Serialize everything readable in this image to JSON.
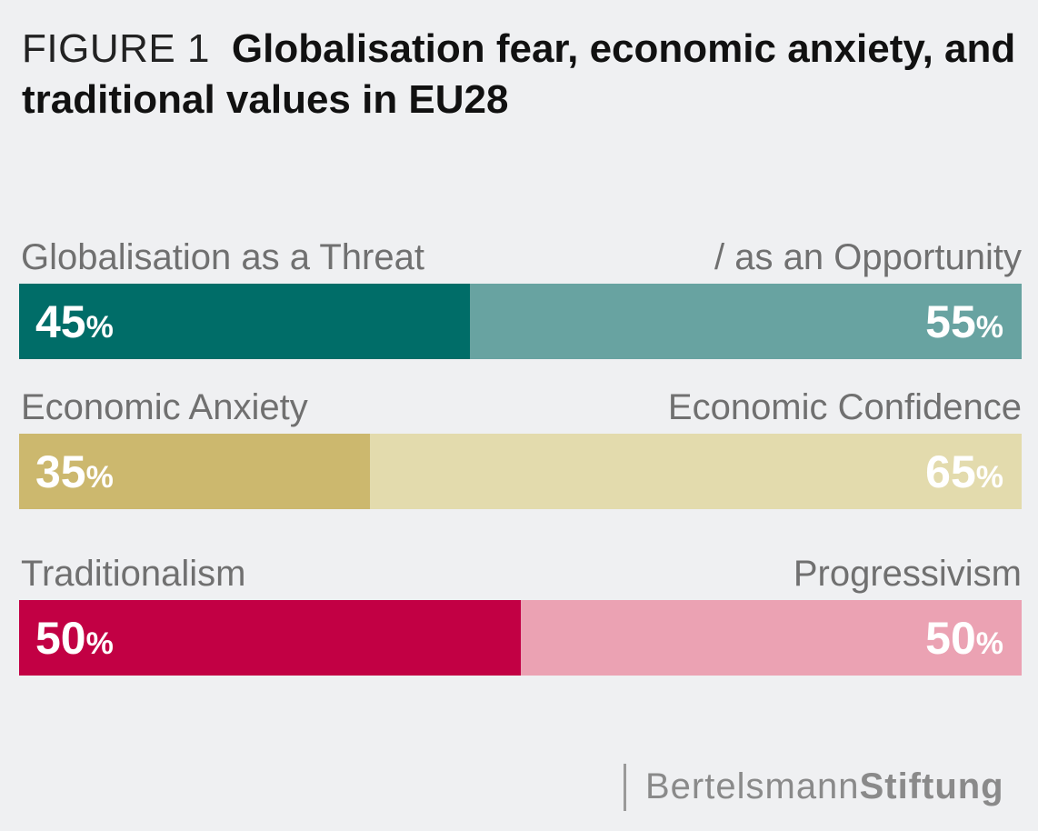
{
  "title": {
    "figure_label": "FIGURE 1",
    "text": "Globalisation fear, economic anxiety, and traditional values in EU28"
  },
  "chart_data": {
    "type": "bar",
    "stacked": true,
    "orientation": "horizontal",
    "rows": [
      {
        "left_label": "Globalisation as a Threat",
        "right_label": "/ as an Opportunity",
        "left_value": 45,
        "right_value": 55,
        "left_color": "#006d68",
        "right_color": "#68a3a1"
      },
      {
        "left_label": "Economic Anxiety",
        "right_label": "Economic Confidence",
        "left_value": 35,
        "right_value": 65,
        "left_color": "#ccb86e",
        "right_color": "#e3dbad"
      },
      {
        "left_label": "Traditionalism",
        "right_label": "Progressivism",
        "left_value": 50,
        "right_value": 50,
        "left_color": "#c20044",
        "right_color": "#eba2b3"
      }
    ],
    "unit": "%"
  },
  "footer": {
    "brand_light": "Bertelsmann",
    "brand_bold": "Stiftung"
  }
}
